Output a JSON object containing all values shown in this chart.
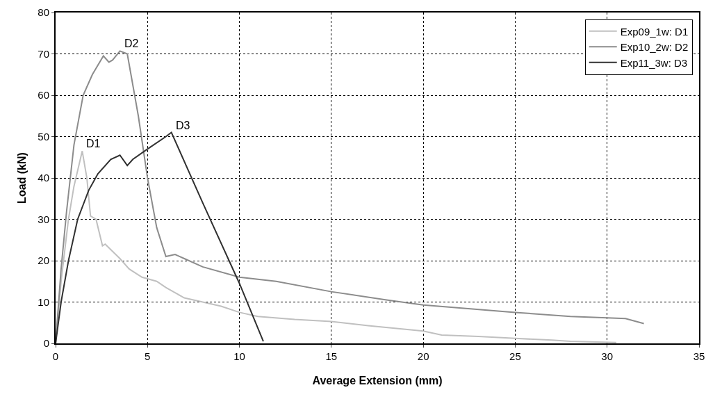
{
  "chart_data": {
    "type": "line",
    "xlabel": "Average Extension (mm)",
    "ylabel": "Load (kN)",
    "xlim": [
      0,
      35
    ],
    "ylim": [
      0,
      80
    ],
    "xticks": [
      0,
      5,
      10,
      15,
      20,
      25,
      30,
      35
    ],
    "yticks": [
      0,
      10,
      20,
      30,
      40,
      50,
      60,
      70,
      80
    ],
    "grid": true,
    "legend": "top right",
    "marker": "none",
    "line_style": "solid",
    "series": [
      {
        "name": "Exp09_1w: D1",
        "color": "#c0c0c0",
        "x": [
          0,
          0.3,
          0.7,
          1.0,
          1.45,
          1.7,
          1.9,
          2.2,
          2.55,
          2.7,
          3.5,
          4.0,
          4.7,
          5.5,
          6,
          7,
          8,
          9,
          10,
          11,
          13,
          15,
          17,
          20,
          21,
          23,
          25,
          27,
          28,
          30.5
        ],
        "values": [
          0,
          15,
          30,
          38,
          46.5,
          40,
          30.8,
          30,
          23.6,
          24,
          20.5,
          18,
          16,
          15,
          13.5,
          11,
          10,
          9,
          7.5,
          6.5,
          5.8,
          5.3,
          4.3,
          3,
          2,
          1.7,
          1.2,
          0.8,
          0.5,
          0.2
        ]
      },
      {
        "name": "Exp10_2w: D2",
        "color": "#8c8c8c",
        "x": [
          0,
          0.3,
          0.6,
          1,
          1.5,
          2,
          2.6,
          2.9,
          3.1,
          3.5,
          3.9,
          4.5,
          5,
          5.5,
          6,
          6.5,
          7,
          8,
          10,
          12,
          15,
          18,
          20,
          25,
          28,
          31,
          32
        ],
        "values": [
          0,
          18,
          32,
          48,
          60,
          65,
          69.5,
          68,
          68.5,
          70.7,
          70,
          55,
          40,
          28,
          21,
          21.5,
          20.5,
          18.5,
          16,
          15,
          12.5,
          10.5,
          9.3,
          7.5,
          6.5,
          6,
          4.8
        ]
      },
      {
        "name": "Exp11_3w: D3",
        "color": "#303030",
        "x": [
          0,
          0.3,
          0.7,
          1.2,
          1.8,
          2.3,
          3,
          3.5,
          3.9,
          4.2,
          5,
          6,
          6.3,
          8,
          10,
          11.3
        ],
        "values": [
          0,
          10,
          20,
          30,
          37,
          41,
          44.5,
          45.5,
          43,
          44.5,
          47,
          50,
          51,
          34,
          14.5,
          0.5
        ]
      }
    ],
    "annotations": [
      {
        "text": "D1",
        "x": 1.45,
        "y": 46.5
      },
      {
        "text": "D2",
        "x": 3.5,
        "y": 70.7
      },
      {
        "text": "D3",
        "x": 6.3,
        "y": 51
      }
    ]
  }
}
